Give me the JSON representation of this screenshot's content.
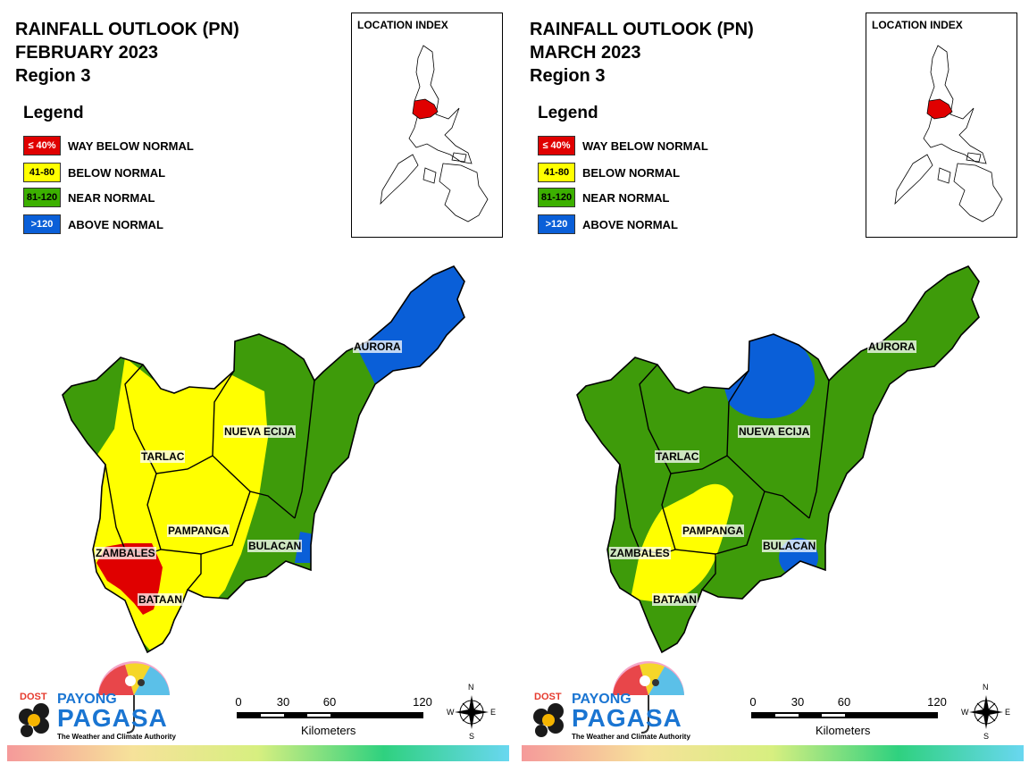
{
  "panels": [
    {
      "title_line1": "RAINFALL OUTLOOK (PN)",
      "title_line2": "FEBRUARY 2023",
      "title_line3": "Region 3",
      "provinces": {
        "aurora": "AURORA",
        "nueva_ecija": "NUEVA ECIJA",
        "tarlac": "TARLAC",
        "pampanga": "PAMPANGA",
        "bulacan": "BULACAN",
        "zambales": "ZAMBALES",
        "bataan": "BATAAN"
      }
    },
    {
      "title_line1": "RAINFALL OUTLOOK (PN)",
      "title_line2": "MARCH 2023",
      "title_line3": "Region 3",
      "provinces": {
        "aurora": "AURORA",
        "nueva_ecija": "NUEVA ECIJA",
        "tarlac": "TARLAC",
        "pampanga": "PAMPANGA",
        "bulacan": "BULACAN",
        "zambales": "ZAMBALES",
        "bataan": "BATAAN"
      }
    }
  ],
  "legend": {
    "title": "Legend",
    "items": [
      {
        "range": "≤ 40%",
        "label": "WAY BELOW NORMAL",
        "color": "#e00000",
        "text_color": "#ffffff"
      },
      {
        "range": "41-80",
        "label": "BELOW NORMAL",
        "color": "#ffff00",
        "text_color": "#000000"
      },
      {
        "range": "81-120",
        "label": "NEAR NORMAL",
        "color": "#3cb000",
        "text_color": "#000000"
      },
      {
        "range": ">120",
        "label": "ABOVE NORMAL",
        "color": "#0a5fd8",
        "text_color": "#ffffff"
      }
    ]
  },
  "location_index": {
    "title": "LOCATION INDEX",
    "highlight_color": "#e00000"
  },
  "colors": {
    "red": "#e00000",
    "yellow": "#ffff00",
    "green": "#3e9b0a",
    "blue": "#0a5fd8"
  },
  "logo": {
    "dost": "DOST",
    "payong": "PAYONG",
    "pagasa": "PAGASA",
    "tagline": "The Weather and Climate Authority"
  },
  "scale": {
    "ticks": [
      "0",
      "30",
      "60",
      "120"
    ],
    "unit": "Kilometers"
  },
  "compass": {
    "n": "N",
    "s": "S",
    "e": "E",
    "w": "W"
  }
}
